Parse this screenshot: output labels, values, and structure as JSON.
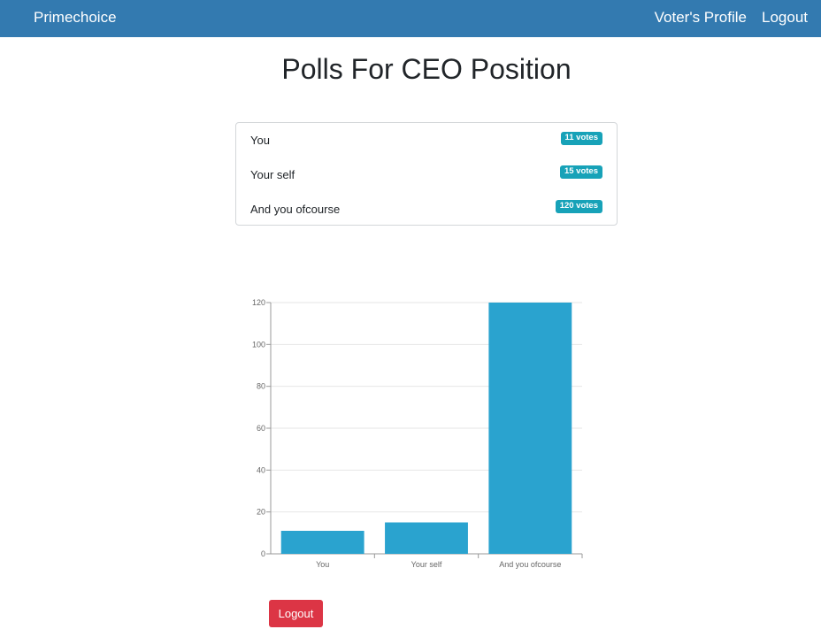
{
  "navbar": {
    "brand": "Primechoice",
    "profile_label": "Voter's Profile",
    "logout_label": "Logout"
  },
  "page": {
    "title": "Polls For CEO Position"
  },
  "polls": [
    {
      "name": "You",
      "votes": "11 votes"
    },
    {
      "name": "Your self",
      "votes": "15 votes"
    },
    {
      "name": "And you ofcourse",
      "votes": "120 votes"
    }
  ],
  "chart_data": {
    "type": "bar",
    "categories": [
      "You",
      "Your self",
      "And you ofcourse"
    ],
    "values": [
      11,
      15,
      120
    ],
    "ylim": [
      0,
      120
    ],
    "yticks": [
      0,
      20,
      40,
      60,
      80,
      100,
      120
    ],
    "bar_color": "#2aa3cf",
    "title": "",
    "xlabel": "",
    "ylabel": ""
  },
  "footer": {
    "logout_label": "Logout"
  }
}
